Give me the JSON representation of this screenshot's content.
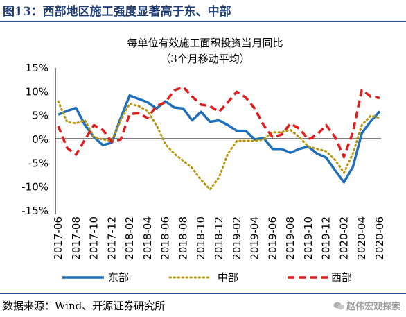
{
  "header": {
    "figure_title": "图13：西部地区施工强度显著高于东、中部"
  },
  "footer": {
    "source": "数据来源：Wind、开源证券研究所",
    "watermark": "赵伟宏观探索"
  },
  "colors": {
    "east": "#1f6fba",
    "central": "#b8960c",
    "west": "#e31b1b",
    "title": "#1f3b73",
    "rule": "#1f4e9c"
  },
  "chart_data": {
    "type": "line",
    "title": "每单位有效施工面积投资当月同比",
    "subtitle": "（3个月移动平均）",
    "y_ticks": [
      "15%",
      "10%",
      "5%",
      "0%",
      "-5%",
      "-10%",
      "-15%"
    ],
    "ylim": [
      -15,
      15
    ],
    "x_tick_labels": [
      "2017-06",
      "2017-08",
      "2017-10",
      "2017-12",
      "2018-02",
      "2018-04",
      "2018-06",
      "2018-08",
      "2018-10",
      "2018-12",
      "2019-02",
      "2019-04",
      "2019-06",
      "2019-08",
      "2019-10",
      "2019-12",
      "2020-02",
      "2020-04",
      "2020-06"
    ],
    "x": [
      "2017-06",
      "2017-07",
      "2017-08",
      "2017-09",
      "2017-10",
      "2017-11",
      "2017-12",
      "2018-01",
      "2018-02",
      "2018-03",
      "2018-04",
      "2018-05",
      "2018-06",
      "2018-07",
      "2018-08",
      "2018-09",
      "2018-10",
      "2018-11",
      "2018-12",
      "2019-01",
      "2019-02",
      "2019-03",
      "2019-04",
      "2019-05",
      "2019-06",
      "2019-07",
      "2019-08",
      "2019-09",
      "2019-10",
      "2019-11",
      "2019-12",
      "2020-01",
      "2020-02",
      "2020-03",
      "2020-04",
      "2020-05",
      "2020-06"
    ],
    "series": [
      {
        "name": "东部",
        "style": "solid",
        "values": [
          5.2,
          6.0,
          6.6,
          3.0,
          0.5,
          -1.2,
          -0.7,
          4.5,
          9.2,
          8.5,
          7.8,
          6.5,
          8.0,
          6.7,
          6.5,
          4.0,
          5.8,
          3.7,
          4.0,
          3.0,
          1.8,
          1.8,
          0.0,
          0.3,
          -2.0,
          -2.0,
          -2.8,
          -2.0,
          -1.5,
          -3.0,
          -3.8,
          -6.5,
          -9.0,
          -5.8,
          1.3,
          3.8,
          5.9
        ]
      },
      {
        "name": "中部",
        "style": "dotted",
        "values": [
          8.0,
          3.6,
          3.4,
          4.0,
          0.5,
          0.0,
          -0.3,
          4.0,
          7.5,
          7.0,
          6.0,
          3.0,
          -1.0,
          -3.0,
          -4.5,
          -6.0,
          -8.5,
          -10.5,
          -8.0,
          -3.0,
          -0.3,
          -0.3,
          -0.3,
          0.0,
          1.5,
          1.5,
          2.0,
          0.5,
          -1.5,
          -2.0,
          -2.5,
          -4.3,
          -7.0,
          -3.0,
          3.0,
          5.0,
          4.5
        ]
      },
      {
        "name": "西部",
        "style": "dashed",
        "values": [
          2.8,
          -1.8,
          -3.2,
          0.0,
          3.0,
          2.0,
          -0.5,
          0.0,
          5.3,
          5.5,
          4.5,
          7.0,
          7.8,
          10.3,
          11.0,
          9.0,
          7.3,
          7.0,
          5.8,
          7.8,
          10.0,
          8.8,
          6.5,
          3.0,
          0.5,
          1.0,
          3.3,
          2.3,
          0.0,
          1.0,
          3.0,
          0.5,
          -3.7,
          1.5,
          10.4,
          9.0,
          8.7
        ]
      }
    ],
    "legend_position": "bottom"
  }
}
